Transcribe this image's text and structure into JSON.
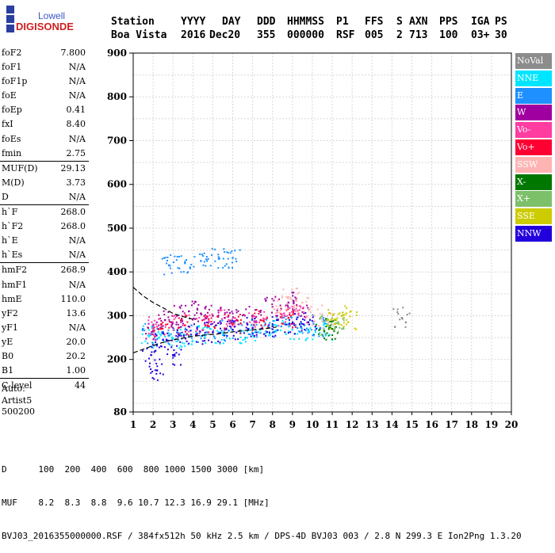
{
  "logo": {
    "line1": "Lowell",
    "line2": "DIGISONDE"
  },
  "header": {
    "labels": [
      "Station",
      "YYYY",
      "DAY",
      "DDD",
      "HHMMSS",
      "P1",
      "FFS",
      "S",
      "AXN",
      "PPS",
      "IGA",
      "PS"
    ],
    "values": [
      "Boa Vista",
      "2016",
      "Dec20",
      "355",
      "000000",
      "RSF",
      "005",
      "2",
      "713",
      "100",
      "03+",
      "30"
    ]
  },
  "params": {
    "group1": [
      {
        "name": "foF2",
        "value": "7.800"
      },
      {
        "name": "foF1",
        "value": "N/A"
      },
      {
        "name": "foF1p",
        "value": "N/A"
      },
      {
        "name": "foE",
        "value": "N/A"
      },
      {
        "name": "foEp",
        "value": "0.41"
      },
      {
        "name": "fxI",
        "value": "8.40"
      },
      {
        "name": "foEs",
        "value": "N/A"
      },
      {
        "name": "fmin",
        "value": "2.75"
      }
    ],
    "group2": [
      {
        "name": "MUF(D)",
        "value": "29.13"
      },
      {
        "name": "M(D)",
        "value": "3.73"
      },
      {
        "name": "D",
        "value": "N/A"
      }
    ],
    "group3": [
      {
        "name": "h`F",
        "value": "268.0"
      },
      {
        "name": "h`F2",
        "value": "268.0"
      },
      {
        "name": "h`E",
        "value": "N/A"
      },
      {
        "name": "h`Es",
        "value": "N/A"
      }
    ],
    "group4": [
      {
        "name": "hmF2",
        "value": "268.9"
      },
      {
        "name": "hmF1",
        "value": "N/A"
      },
      {
        "name": "hmE",
        "value": "110.0"
      },
      {
        "name": "yF2",
        "value": "13.6"
      },
      {
        "name": "yF1",
        "value": "N/A"
      },
      {
        "name": "yE",
        "value": "20.0"
      },
      {
        "name": "B0",
        "value": "20.2"
      },
      {
        "name": "B1",
        "value": "1.00"
      }
    ],
    "group5": [
      {
        "name": "C-level",
        "value": "44"
      }
    ]
  },
  "auto": {
    "line1": "Auto:",
    "line2": "Artist5",
    "line3": "500200"
  },
  "legend": [
    {
      "label": "NoVal",
      "color": "#8c8c8c"
    },
    {
      "label": "NNE",
      "color": "#00e5ff"
    },
    {
      "label": "E",
      "color": "#1e90ff"
    },
    {
      "label": "W",
      "color": "#a000a0"
    },
    {
      "label": "Vo-",
      "color": "#ff3ca0"
    },
    {
      "label": "Vo+",
      "color": "#ff0033"
    },
    {
      "label": "SSW",
      "color": "#ffb4b4"
    },
    {
      "label": "X-",
      "color": "#007800"
    },
    {
      "label": "X+",
      "color": "#7cc06a"
    },
    {
      "label": "SSE",
      "color": "#cccc00"
    },
    {
      "label": "NNW",
      "color": "#2200dd"
    }
  ],
  "footer": {
    "row1_label": "D",
    "row1_values": [
      "100",
      "200",
      "400",
      "600",
      "800",
      "1000",
      "1500",
      "3000"
    ],
    "row1_unit": "[km]",
    "row2_label": "MUF",
    "row2_values": [
      "8.2",
      "8.3",
      "8.8",
      "9.6",
      "10.7",
      "12.3",
      "16.9",
      "29.1"
    ],
    "row2_unit": "[MHz]",
    "info": "BVJ03_2016355000000.RSF / 384fx512h 50 kHz 2.5 km / DPS-4D BVJ03 003 / 2.8 N 299.3 E Ion2Png 1.3.20"
  },
  "chart_data": {
    "type": "scatter",
    "xlim": [
      1,
      20
    ],
    "ylim": [
      80,
      900
    ],
    "x_ticks": [
      1,
      2,
      3,
      4,
      5,
      6,
      7,
      8,
      9,
      10,
      11,
      12,
      13,
      14,
      15,
      16,
      17,
      18,
      19,
      20
    ],
    "y_ticks": [
      80,
      200,
      300,
      400,
      500,
      600,
      700,
      800,
      900
    ],
    "grid": true,
    "legend_position": "right",
    "series": [
      {
        "name": "NNE",
        "points": [
          [
            1.8,
            255
          ],
          [
            2.3,
            250
          ],
          [
            3.0,
            248
          ],
          [
            3.8,
            252
          ],
          [
            4.6,
            253
          ],
          [
            5.5,
            256
          ],
          [
            6.4,
            260
          ],
          [
            7.3,
            262
          ],
          [
            8.2,
            266
          ],
          [
            9.0,
            268
          ],
          [
            9.8,
            266
          ],
          [
            10.6,
            262
          ]
        ]
      },
      {
        "name": "E",
        "points": [
          [
            1.9,
            258
          ],
          [
            2.8,
            255
          ],
          [
            3.7,
            258
          ],
          [
            4.7,
            262
          ],
          [
            5.8,
            266
          ],
          [
            6.8,
            270
          ],
          [
            7.8,
            274
          ],
          [
            8.8,
            280
          ],
          [
            9.6,
            278
          ],
          [
            10.4,
            272
          ],
          [
            2.8,
            415
          ],
          [
            3.6,
            420
          ],
          [
            4.4,
            425
          ],
          [
            5.3,
            430
          ],
          [
            6.0,
            432
          ]
        ]
      },
      {
        "name": "W",
        "points": [
          [
            2.0,
            265
          ],
          [
            2.6,
            290
          ],
          [
            3.2,
            300
          ],
          [
            3.8,
            310
          ],
          [
            4.4,
            305
          ],
          [
            5.0,
            300
          ],
          [
            5.6,
            295
          ],
          [
            6.2,
            290
          ],
          [
            7.0,
            300
          ],
          [
            8.0,
            320
          ],
          [
            8.8,
            330
          ],
          [
            9.4,
            320
          ]
        ]
      },
      {
        "name": "Vo-",
        "points": [
          [
            2.2,
            275
          ],
          [
            3.4,
            285
          ],
          [
            4.6,
            280
          ],
          [
            5.8,
            290
          ],
          [
            7.2,
            285
          ],
          [
            8.6,
            300
          ],
          [
            9.3,
            305
          ]
        ]
      },
      {
        "name": "Vo+",
        "points": [
          [
            2.4,
            270
          ],
          [
            3.6,
            278
          ],
          [
            4.8,
            276
          ],
          [
            6.0,
            282
          ],
          [
            7.4,
            290
          ],
          [
            8.8,
            295
          ]
        ]
      },
      {
        "name": "SSW",
        "points": [
          [
            8.4,
            320
          ],
          [
            8.9,
            340
          ],
          [
            9.5,
            330
          ],
          [
            10.1,
            300
          ],
          [
            10.8,
            285
          ]
        ]
      },
      {
        "name": "X-",
        "points": [
          [
            10.6,
            265
          ],
          [
            11.0,
            270
          ]
        ]
      },
      {
        "name": "X+",
        "points": [
          [
            10.8,
            278
          ],
          [
            11.3,
            285
          ]
        ]
      },
      {
        "name": "SSE",
        "points": [
          [
            11.2,
            290
          ],
          [
            11.5,
            300
          ],
          [
            11.8,
            285
          ]
        ]
      },
      {
        "name": "NNW",
        "points": [
          [
            1.9,
            210
          ],
          [
            2.5,
            245
          ],
          [
            3.3,
            255
          ],
          [
            4.2,
            258
          ],
          [
            5.0,
            262
          ],
          [
            6.0,
            268
          ],
          [
            7.0,
            272
          ],
          [
            8.0,
            276
          ],
          [
            9.0,
            282
          ],
          [
            9.8,
            285
          ],
          [
            2.2,
            175
          ],
          [
            3.0,
            210
          ]
        ]
      },
      {
        "name": "NoVal",
        "points": [
          [
            14.5,
            295
          ]
        ]
      }
    ],
    "profile_lines": [
      {
        "name": "dashed",
        "points": [
          [
            1.0,
            365
          ],
          [
            1.5,
            345
          ],
          [
            2.0,
            330
          ],
          [
            2.5,
            318
          ],
          [
            3.0,
            305
          ],
          [
            3.5,
            298
          ],
          [
            4.0,
            292
          ]
        ]
      },
      {
        "name": "dashed-lower",
        "points": [
          [
            1.0,
            215
          ],
          [
            1.6,
            225
          ],
          [
            2.2,
            235
          ],
          [
            2.8,
            243
          ],
          [
            3.4,
            248
          ],
          [
            4.0,
            253
          ],
          [
            4.6,
            256
          ],
          [
            5.2,
            258
          ],
          [
            5.8,
            262
          ],
          [
            6.4,
            265
          ],
          [
            7.0,
            268
          ],
          [
            7.6,
            270
          ],
          [
            8.2,
            274
          ]
        ]
      }
    ]
  }
}
